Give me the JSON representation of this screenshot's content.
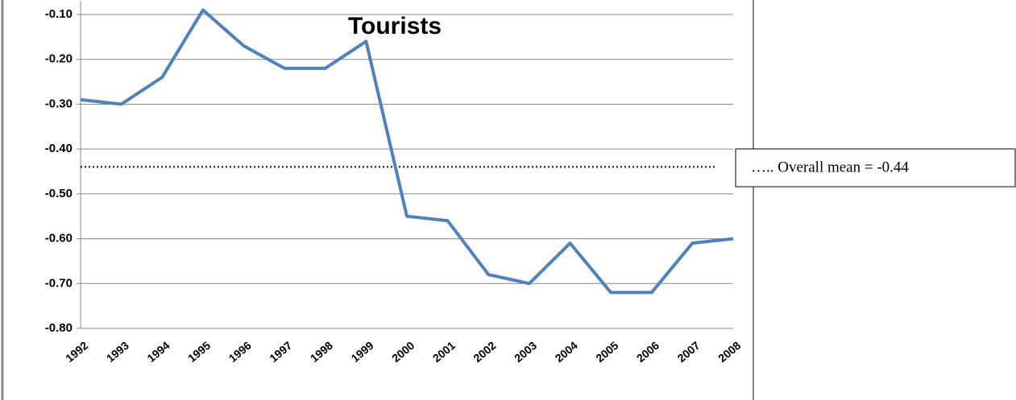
{
  "chart_data": {
    "type": "line",
    "title": "Tourists",
    "categories": [
      "1992",
      "1993",
      "1994",
      "1995",
      "1996",
      "1997",
      "1998",
      "1999",
      "2000",
      "2001",
      "2002",
      "2003",
      "2004",
      "2005",
      "2006",
      "2007",
      "2008"
    ],
    "series": [
      {
        "color": "#4f81bd",
        "values": [
          -0.29,
          -0.3,
          -0.24,
          -0.09,
          -0.17,
          -0.22,
          -0.22,
          -0.16,
          -0.55,
          -0.56,
          -0.68,
          -0.7,
          -0.61,
          -0.72,
          -0.72,
          -0.61,
          -0.6
        ]
      }
    ],
    "mean": -0.44,
    "annotation": "….. Overall mean = -0.44",
    "ylim": [
      -0.8,
      -0.07
    ],
    "yticks": [
      {
        "value": -0.1,
        "label": "-0.10"
      },
      {
        "value": -0.2,
        "label": "-0.20"
      },
      {
        "value": -0.3,
        "label": "-0.30"
      },
      {
        "value": -0.4,
        "label": "-0.40"
      },
      {
        "value": -0.5,
        "label": "-0.50"
      },
      {
        "value": -0.6,
        "label": "-0.60"
      },
      {
        "value": -0.7,
        "label": "-0.70"
      },
      {
        "value": -0.8,
        "label": "-0.80"
      }
    ],
    "grid": true
  }
}
